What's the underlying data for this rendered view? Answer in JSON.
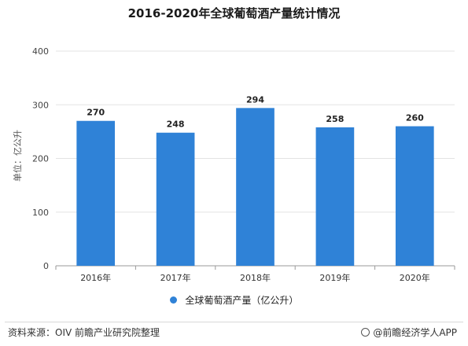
{
  "chart_data": {
    "type": "bar",
    "title": "2016-2020年全球葡萄酒产量统计情况",
    "ylabel": "单位：亿公升",
    "xlabel": "",
    "categories": [
      "2016年",
      "2017年",
      "2018年",
      "2019年",
      "2020年"
    ],
    "series": [
      {
        "name": "全球葡萄酒产量（亿公升）",
        "values": [
          270,
          248,
          294,
          258,
          260
        ],
        "color": "#2f82d7"
      }
    ],
    "ylim": [
      0,
      400
    ],
    "yticks": [
      0,
      100,
      200,
      300,
      400
    ],
    "grid": true,
    "legend_position": "bottom",
    "data_labels": true
  },
  "footer": {
    "source": "资料来源：OIV 前瞻产业研究院整理",
    "brand": "@前瞻经济学人APP"
  }
}
